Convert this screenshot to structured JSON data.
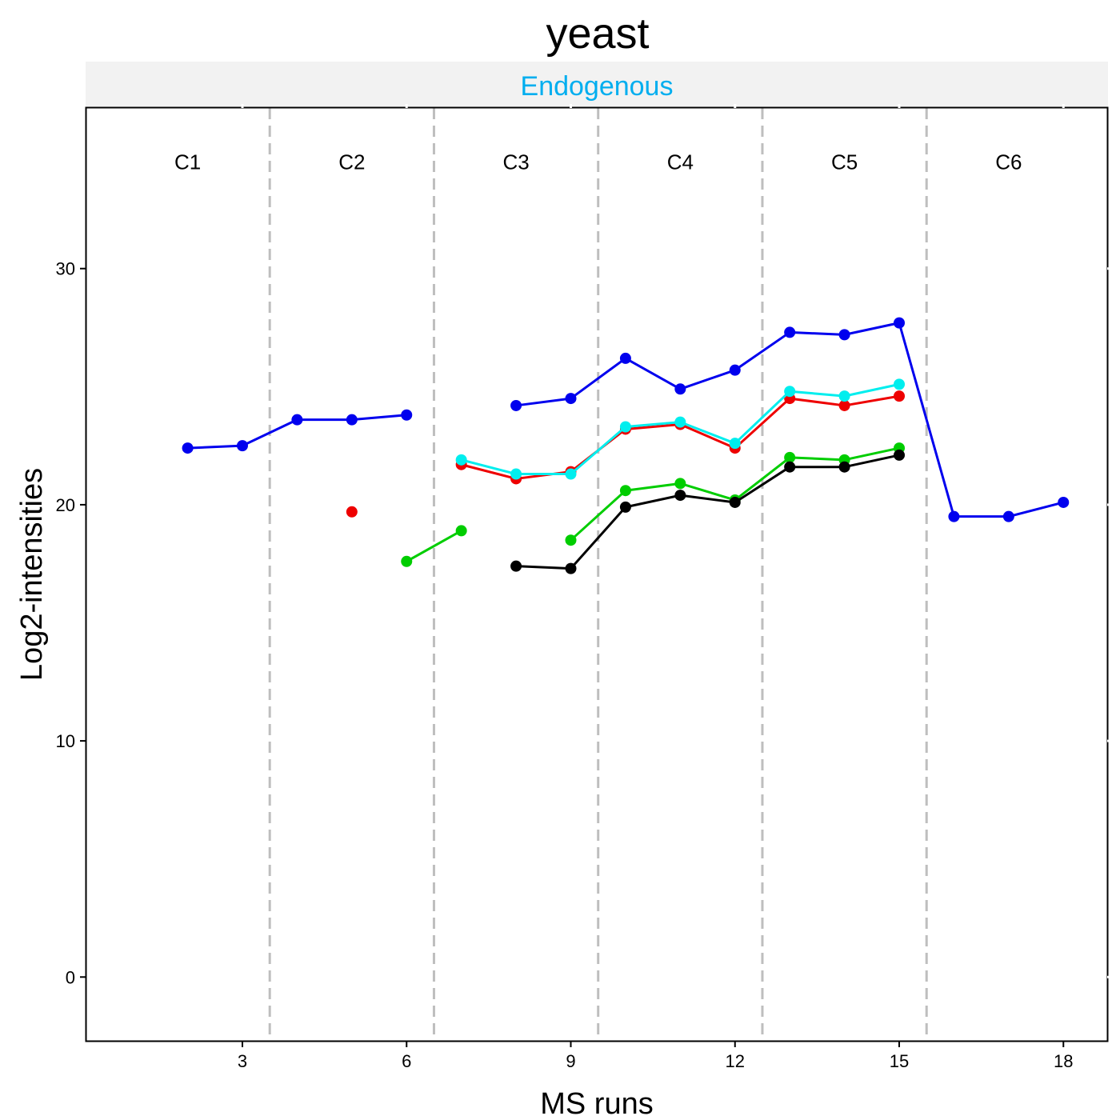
{
  "chart_data": {
    "type": "line",
    "title": "yeast",
    "facet_label": "Endogenous",
    "facet_label_color": "#00AEEF",
    "xlabel": "MS runs",
    "ylabel": "Log2-intensities",
    "xlim": [
      0.15,
      18.8
    ],
    "ylim": [
      -2.7,
      36.8
    ],
    "x_ticks": [
      3,
      6,
      9,
      12,
      15,
      18
    ],
    "y_ticks": [
      0,
      10,
      20,
      30
    ],
    "grid": false,
    "separators_x": [
      3.5,
      6.5,
      9.5,
      12.5,
      15.5
    ],
    "separator_color": "#BEBEBE",
    "condition_labels": [
      {
        "label": "C1",
        "x": 2
      },
      {
        "label": "C2",
        "x": 5
      },
      {
        "label": "C3",
        "x": 8
      },
      {
        "label": "C4",
        "x": 11
      },
      {
        "label": "C5",
        "x": 14
      },
      {
        "label": "C6",
        "x": 17
      }
    ],
    "condition_label_y": 34.2,
    "series": [
      {
        "color": "#0000EE",
        "points": [
          [
            2,
            22.4
          ],
          [
            3,
            22.5
          ],
          [
            4,
            23.6
          ],
          [
            5,
            23.6
          ],
          [
            6,
            23.8
          ],
          [
            7,
            null
          ],
          [
            8,
            24.2
          ],
          [
            9,
            24.5
          ],
          [
            10,
            26.2
          ],
          [
            11,
            24.9
          ],
          [
            12,
            25.7
          ],
          [
            13,
            27.3
          ],
          [
            14,
            27.2
          ],
          [
            15,
            27.7
          ],
          [
            16,
            19.5
          ],
          [
            17,
            19.5
          ],
          [
            18,
            20.1
          ]
        ]
      },
      {
        "color": "#EE0000",
        "points": [
          [
            5,
            19.7
          ],
          [
            6,
            null
          ],
          [
            7,
            21.7
          ],
          [
            8,
            21.1
          ],
          [
            9,
            21.4
          ],
          [
            10,
            23.2
          ],
          [
            11,
            23.4
          ],
          [
            12,
            22.4
          ],
          [
            13,
            24.5
          ],
          [
            14,
            24.2
          ],
          [
            15,
            24.6
          ]
        ]
      },
      {
        "color": "#00EEEE",
        "points": [
          [
            7,
            21.9
          ],
          [
            8,
            21.3
          ],
          [
            9,
            21.3
          ],
          [
            10,
            23.3
          ],
          [
            11,
            23.5
          ],
          [
            12,
            22.6
          ],
          [
            13,
            24.8
          ],
          [
            14,
            24.6
          ],
          [
            15,
            25.1
          ]
        ]
      },
      {
        "color": "#00CD00",
        "points": [
          [
            6,
            17.6
          ],
          [
            7,
            18.9
          ],
          [
            8,
            null
          ],
          [
            9,
            18.5
          ],
          [
            10,
            20.6
          ],
          [
            11,
            20.9
          ],
          [
            12,
            20.2
          ],
          [
            13,
            22.0
          ],
          [
            14,
            21.9
          ],
          [
            15,
            22.4
          ]
        ]
      },
      {
        "color": "#000000",
        "points": [
          [
            8,
            17.4
          ],
          [
            9,
            17.3
          ],
          [
            10,
            19.9
          ],
          [
            11,
            20.4
          ],
          [
            12,
            20.1
          ],
          [
            13,
            21.6
          ],
          [
            14,
            21.6
          ],
          [
            15,
            22.1
          ]
        ]
      }
    ]
  }
}
